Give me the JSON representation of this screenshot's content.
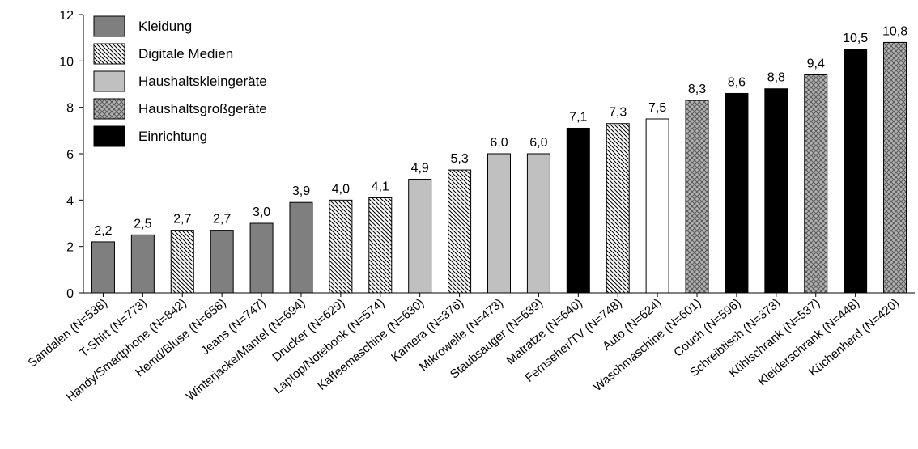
{
  "chart_data": {
    "type": "bar",
    "ylim": [
      0,
      12
    ],
    "yticks": [
      0,
      2,
      4,
      6,
      8,
      10,
      12
    ],
    "grid": false,
    "legend_position": "top-left",
    "groups": [
      {
        "name": "Kleidung",
        "color": "#7f7f7f",
        "pattern": "solid-gray"
      },
      {
        "name": "Digitale Medien",
        "color": "#ffffff",
        "pattern": "diagonal-hatch"
      },
      {
        "name": "Haushaltskleingeräte",
        "color": "#c0c0c0",
        "pattern": "light-gray"
      },
      {
        "name": "Haushaltsgroßgeräte",
        "color": "#a6a6a6",
        "pattern": "crosshatch"
      },
      {
        "name": "Einrichtung",
        "color": "#000000",
        "pattern": "solid-black"
      }
    ],
    "categories": [
      "Sandalen (N=538)",
      "T-Shirt (N=773)",
      "Handy/Smartphone (N=842)",
      "Hemd/Bluse (N=658)",
      "Jeans (N=747)",
      "Winterjacke/Mantel (N=694)",
      "Drucker (N=629)",
      "Laptop/Notebook (N=574)",
      "Kaffeemaschine (N=630)",
      "Kamera (N=376)",
      "Mikrowelle (N=473)",
      "Staubsauger (N=639)",
      "Matratze (N=640)",
      "Fernseher/TV (N=748)",
      "Auto (N=624)",
      "Waschmaschine (N=601)",
      "Couch (N=596)",
      "Schreibtisch (N=373)",
      "Kühlschrank (N=537)",
      "Kleiderschrank (N=448)",
      "Küchenherd (N=420)"
    ],
    "values": [
      2.2,
      2.5,
      2.7,
      2.7,
      3.0,
      3.9,
      4.0,
      4.1,
      4.9,
      5.3,
      6.0,
      6.0,
      7.1,
      7.3,
      7.5,
      8.3,
      8.6,
      8.8,
      9.4,
      10.5,
      10.8
    ],
    "labels": [
      "2,2",
      "2,5",
      "2,7",
      "2,7",
      "3,0",
      "3,9",
      "4,0",
      "4,1",
      "4,9",
      "5,3",
      "6,0",
      "6,0",
      "7,1",
      "7,3",
      "7,5",
      "8,3",
      "8,6",
      "8,8",
      "9,4",
      "10,5",
      "10,8"
    ],
    "group_index": [
      0,
      0,
      1,
      0,
      0,
      0,
      1,
      1,
      2,
      1,
      2,
      2,
      4,
      1,
      -1,
      3,
      4,
      4,
      3,
      4,
      3
    ]
  }
}
